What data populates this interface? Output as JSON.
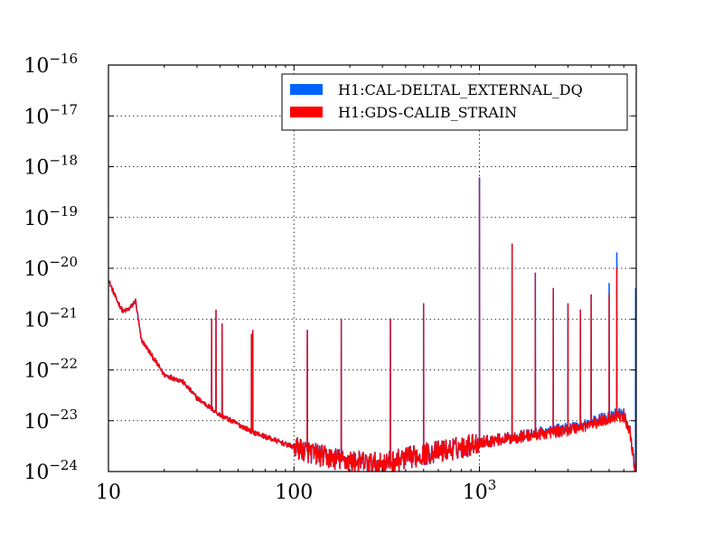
{
  "chart_data": {
    "type": "line",
    "title": "",
    "xlabel": "",
    "ylabel": "",
    "xscale": "log",
    "yscale": "log",
    "xlim": [
      10,
      7000
    ],
    "ylim": [
      1e-24,
      1e-16
    ],
    "grid": true,
    "legend_position": "top-right",
    "x_ticks": [
      {
        "value": 10,
        "base": "10",
        "exp": ""
      },
      {
        "value": 100,
        "base": "100",
        "exp": ""
      },
      {
        "value": 1000,
        "base": "10",
        "exp": "3"
      }
    ],
    "y_ticks": [
      {
        "value": 1e-24,
        "base": "10",
        "exp": "−24"
      },
      {
        "value": 1e-23,
        "base": "10",
        "exp": "−23"
      },
      {
        "value": 1e-22,
        "base": "10",
        "exp": "−22"
      },
      {
        "value": 1e-21,
        "base": "10",
        "exp": "−21"
      },
      {
        "value": 1e-20,
        "base": "10",
        "exp": "−20"
      },
      {
        "value": 1e-19,
        "base": "10",
        "exp": "−19"
      },
      {
        "value": 1e-18,
        "base": "10",
        "exp": "−18"
      },
      {
        "value": 1e-17,
        "base": "10",
        "exp": "−17"
      },
      {
        "value": 1e-16,
        "base": "10",
        "exp": "−16"
      }
    ],
    "series": [
      {
        "name": "H1:CAL-DELTAL_EXTERNAL_DQ",
        "color": "#0062ff",
        "baseline": [
          [
            10,
            6e-21
          ],
          [
            11,
            2.5e-21
          ],
          [
            12,
            1.4e-21
          ],
          [
            13,
            1.6e-21
          ],
          [
            14,
            2.3e-21
          ],
          [
            15,
            4e-22
          ],
          [
            17,
            2e-22
          ],
          [
            20,
            8e-23
          ],
          [
            25,
            6e-23
          ],
          [
            30,
            2.8e-23
          ],
          [
            40,
            1.3e-23
          ],
          [
            60,
            6e-24
          ],
          [
            100,
            3e-24
          ],
          [
            150,
            1.9e-24
          ],
          [
            200,
            1.6e-24
          ],
          [
            300,
            1.4e-24
          ],
          [
            500,
            2.2e-24
          ],
          [
            800,
            3e-24
          ],
          [
            1000,
            3.8e-24
          ],
          [
            1500,
            4.6e-24
          ],
          [
            2000,
            5.5e-24
          ],
          [
            3000,
            7e-24
          ],
          [
            4000,
            9e-24
          ],
          [
            5000,
            1.2e-23
          ],
          [
            5500,
            1.4e-23
          ],
          [
            6000,
            1.3e-23
          ],
          [
            6500,
            6e-24
          ],
          [
            6800,
            1.5e-24
          ],
          [
            6950,
            1e-24
          ]
        ],
        "lines": [
          [
            36,
            1e-21
          ],
          [
            38,
            1.5e-21
          ],
          [
            41,
            8e-22
          ],
          [
            59,
            5e-22
          ],
          [
            60,
            6e-22
          ],
          [
            118,
            6e-22
          ],
          [
            180,
            1e-21
          ],
          [
            331,
            1e-21
          ],
          [
            500,
            2e-21
          ],
          [
            1000,
            6e-19
          ],
          [
            1500,
            3e-20
          ],
          [
            2000,
            8e-21
          ],
          [
            2500,
            4e-21
          ],
          [
            3000,
            2e-21
          ],
          [
            3500,
            1.5e-21
          ],
          [
            4000,
            3e-21
          ],
          [
            5000,
            5e-21
          ],
          [
            5500,
            2e-20
          ],
          [
            6950,
            4e-21
          ]
        ]
      },
      {
        "name": "H1:GDS-CALIB_STRAIN",
        "color": "#ff0000",
        "baseline": [
          [
            10,
            6e-21
          ],
          [
            11,
            2.5e-21
          ],
          [
            12,
            1.4e-21
          ],
          [
            13,
            1.6e-21
          ],
          [
            14,
            2.3e-21
          ],
          [
            15,
            4e-22
          ],
          [
            17,
            2e-22
          ],
          [
            20,
            8e-23
          ],
          [
            25,
            6e-23
          ],
          [
            30,
            2.8e-23
          ],
          [
            40,
            1.3e-23
          ],
          [
            60,
            6e-24
          ],
          [
            100,
            3e-24
          ],
          [
            150,
            1.9e-24
          ],
          [
            200,
            1.6e-24
          ],
          [
            300,
            1.4e-24
          ],
          [
            500,
            2.2e-24
          ],
          [
            800,
            3e-24
          ],
          [
            1000,
            3.8e-24
          ],
          [
            1500,
            4.6e-24
          ],
          [
            2000,
            5.3e-24
          ],
          [
            3000,
            6.6e-24
          ],
          [
            4000,
            8.5e-24
          ],
          [
            5000,
            1.1e-23
          ],
          [
            5500,
            1.25e-23
          ],
          [
            6000,
            1.2e-23
          ],
          [
            6500,
            6e-24
          ],
          [
            6800,
            1.5e-24
          ],
          [
            6950,
            1e-24
          ]
        ],
        "lines": [
          [
            36,
            1e-21
          ],
          [
            38,
            1.5e-21
          ],
          [
            41,
            8e-22
          ],
          [
            59,
            5e-22
          ],
          [
            60,
            6e-22
          ],
          [
            118,
            6e-22
          ],
          [
            180,
            1e-21
          ],
          [
            331,
            1e-21
          ],
          [
            500,
            2e-21
          ],
          [
            1000,
            6e-19
          ],
          [
            1500,
            3e-20
          ],
          [
            2000,
            8e-21
          ],
          [
            2500,
            4e-21
          ],
          [
            3000,
            2e-21
          ],
          [
            3500,
            1.5e-21
          ],
          [
            4000,
            3e-21
          ],
          [
            5000,
            3e-21
          ],
          [
            5500,
            1e-20
          ]
        ]
      }
    ]
  }
}
